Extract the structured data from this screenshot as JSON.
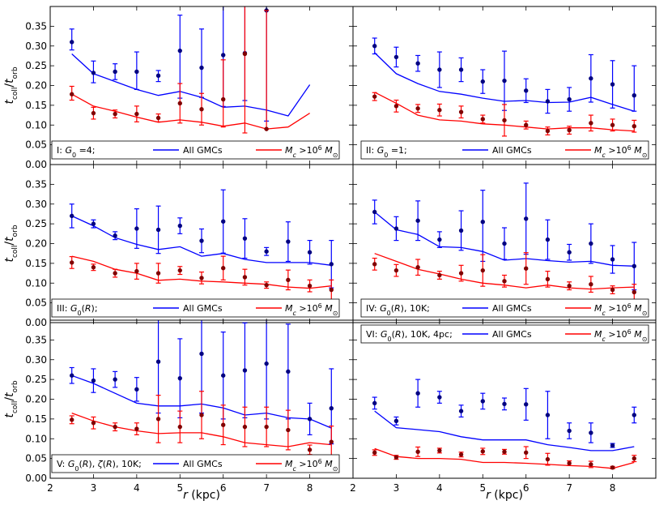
{
  "chart_data": {
    "type": "line",
    "xlabel": "r (kpc)",
    "ylabel": "t_coll/t_orb",
    "xlim": [
      2,
      9
    ],
    "ylim": [
      0,
      0.4
    ],
    "x_ticks": [
      "2",
      "3",
      "4",
      "5",
      "6",
      "7",
      "8"
    ],
    "y_ticks": [
      "0.00",
      "0.05",
      "0.10",
      "0.15",
      "0.20",
      "0.25",
      "0.30",
      "0.35"
    ],
    "series_names": [
      "All GMCs",
      "M_c > 10^6 M_⊙"
    ],
    "series_colors": [
      "#0000ff",
      "#ff0000"
    ],
    "marker_colors": [
      "#000080",
      "#800000"
    ],
    "panels": [
      {
        "label": "I: G_0 =4;",
        "all_line": {
          "x": [
            2.5,
            3,
            3.5,
            4,
            4.5,
            5,
            5.5,
            6,
            6.5,
            7,
            7.5,
            8
          ],
          "y": [
            0.28,
            0.23,
            0.21,
            0.19,
            0.175,
            0.185,
            0.17,
            0.145,
            0.148,
            0.138,
            0.123,
            0.202
          ]
        },
        "all_points": {
          "x": [
            2.5,
            3,
            3.5,
            4,
            4.5,
            5,
            5.5,
            6,
            6.5,
            7
          ],
          "y": [
            0.31,
            0.232,
            0.235,
            0.235,
            0.225,
            0.288,
            0.245,
            0.277,
            0.282,
            0.39
          ],
          "err_lo": [
            0.02,
            0.025,
            0.02,
            0.045,
            0.015,
            0.12,
            0.075,
            0.13,
            0.12,
            0.28
          ],
          "err_hi": [
            0.033,
            0.03,
            0.02,
            0.05,
            0.013,
            0.09,
            0.098,
            0.2,
            0.2,
            0.2
          ]
        },
        "mc_line": {
          "x": [
            2.5,
            3,
            3.5,
            4,
            4.5,
            5,
            5.5,
            6,
            6.5,
            7,
            7.5,
            8
          ],
          "y": [
            0.178,
            0.148,
            0.135,
            0.12,
            0.107,
            0.113,
            0.107,
            0.097,
            0.105,
            0.09,
            0.095,
            0.13
          ]
        },
        "mc_points": {
          "x": [
            2.5,
            3,
            3.5,
            4,
            4.5,
            5,
            5.5,
            6,
            6.5,
            7
          ],
          "y": [
            0.178,
            0.13,
            0.128,
            0.128,
            0.118,
            0.155,
            0.14,
            0.165,
            0.28,
            0.09
          ],
          "err_lo": [
            0.015,
            0.015,
            0.01,
            0.02,
            0.01,
            0.05,
            0.04,
            0.07,
            0.2,
            0.0
          ],
          "err_hi": [
            0.02,
            0.015,
            0.01,
            0.02,
            0.01,
            0.05,
            0.04,
            0.1,
            0.15,
            0.3
          ]
        }
      },
      {
        "label": "II: G_0 =1;",
        "all_line": {
          "x": [
            2.5,
            3,
            3.5,
            4,
            4.5,
            5,
            5.5,
            6,
            6.5,
            7,
            7.5,
            8,
            8.5
          ],
          "y": [
            0.283,
            0.23,
            0.205,
            0.185,
            0.178,
            0.168,
            0.16,
            0.162,
            0.157,
            0.158,
            0.17,
            0.152,
            0.135
          ]
        },
        "all_points": {
          "x": [
            2.5,
            3,
            3.5,
            4,
            4.5,
            5,
            5.5,
            6,
            6.5,
            7,
            7.5,
            8,
            8.5
          ],
          "y": [
            0.3,
            0.272,
            0.256,
            0.24,
            0.24,
            0.21,
            0.212,
            0.187,
            0.16,
            0.165,
            0.218,
            0.203,
            0.175
          ],
          "err_lo": [
            0.02,
            0.025,
            0.02,
            0.045,
            0.03,
            0.03,
            0.075,
            0.03,
            0.03,
            0.03,
            0.06,
            0.06,
            0.04
          ],
          "err_hi": [
            0.02,
            0.025,
            0.02,
            0.045,
            0.03,
            0.03,
            0.075,
            0.03,
            0.03,
            0.03,
            0.06,
            0.06,
            0.075
          ]
        },
        "mc_line": {
          "x": [
            2.5,
            3,
            3.5,
            4,
            4.5,
            5,
            5.5,
            6,
            6.5,
            7,
            7.5,
            8,
            8.5
          ],
          "y": [
            0.183,
            0.155,
            0.125,
            0.113,
            0.11,
            0.103,
            0.1,
            0.095,
            0.09,
            0.093,
            0.093,
            0.088,
            0.085
          ]
        },
        "mc_points": {
          "x": [
            2.5,
            3,
            3.5,
            4,
            4.5,
            5,
            5.5,
            6,
            6.5,
            7,
            7.5,
            8,
            8.5
          ],
          "y": [
            0.172,
            0.148,
            0.142,
            0.138,
            0.133,
            0.115,
            0.112,
            0.1,
            0.085,
            0.087,
            0.105,
            0.1,
            0.097
          ],
          "err_lo": [
            0.01,
            0.015,
            0.01,
            0.015,
            0.015,
            0.01,
            0.04,
            0.01,
            0.01,
            0.01,
            0.02,
            0.015,
            0.015
          ],
          "err_hi": [
            0.01,
            0.015,
            0.01,
            0.015,
            0.015,
            0.01,
            0.04,
            0.01,
            0.01,
            0.01,
            0.02,
            0.015,
            0.015
          ]
        }
      },
      {
        "label": "III: G_0(R);",
        "all_line": {
          "x": [
            2.5,
            3,
            3.5,
            4,
            4.5,
            5,
            5.5,
            6,
            6.5,
            7,
            7.5,
            8,
            8.5
          ],
          "y": [
            0.27,
            0.245,
            0.215,
            0.198,
            0.185,
            0.192,
            0.168,
            0.175,
            0.16,
            0.152,
            0.152,
            0.152,
            0.145
          ]
        },
        "all_points": {
          "x": [
            2.5,
            3,
            3.5,
            4,
            4.5,
            5,
            5.5,
            6,
            6.5,
            7,
            7.5,
            8,
            8.5
          ],
          "y": [
            0.27,
            0.25,
            0.22,
            0.238,
            0.235,
            0.245,
            0.207,
            0.256,
            0.213,
            0.18,
            0.205,
            0.178,
            0.148
          ],
          "err_lo": [
            0.03,
            0.01,
            0.01,
            0.05,
            0.06,
            0.02,
            0.03,
            0.08,
            0.05,
            0.01,
            0.05,
            0.03,
            0.06
          ],
          "err_hi": [
            0.03,
            0.01,
            0.01,
            0.05,
            0.06,
            0.02,
            0.03,
            0.08,
            0.05,
            0.01,
            0.05,
            0.03,
            0.06
          ]
        },
        "mc_line": {
          "x": [
            2.5,
            3,
            3.5,
            4,
            4.5,
            5,
            5.5,
            6,
            6.5,
            7,
            7.5,
            8,
            8.5
          ],
          "y": [
            0.168,
            0.155,
            0.135,
            0.125,
            0.107,
            0.11,
            0.105,
            0.103,
            0.1,
            0.097,
            0.09,
            0.087,
            0.093
          ]
        },
        "mc_points": {
          "x": [
            2.5,
            3,
            3.5,
            4,
            4.5,
            5,
            5.5,
            6,
            6.5,
            7,
            7.5,
            8,
            8.5
          ],
          "y": [
            0.152,
            0.14,
            0.125,
            0.13,
            0.125,
            0.132,
            0.113,
            0.138,
            0.115,
            0.095,
            0.108,
            0.093,
            0.083
          ],
          "err_lo": [
            0.015,
            0.008,
            0.01,
            0.02,
            0.025,
            0.01,
            0.015,
            0.03,
            0.02,
            0.008,
            0.025,
            0.015,
            0.025
          ],
          "err_hi": [
            0.015,
            0.008,
            0.01,
            0.02,
            0.025,
            0.01,
            0.015,
            0.03,
            0.02,
            0.008,
            0.025,
            0.015,
            0.025
          ]
        }
      },
      {
        "label": "IV: G_0(R), 10K;",
        "all_line": {
          "x": [
            2.5,
            3,
            3.5,
            4,
            4.5,
            5,
            5.5,
            6,
            6.5,
            7,
            7.5,
            8,
            8.5
          ],
          "y": [
            0.28,
            0.235,
            0.223,
            0.192,
            0.19,
            0.18,
            0.158,
            0.162,
            0.157,
            0.153,
            0.155,
            0.145,
            0.143
          ]
        },
        "all_points": {
          "x": [
            2.5,
            3,
            3.5,
            4,
            4.5,
            5,
            5.5,
            6,
            6.5,
            7,
            7.5,
            8,
            8.5
          ],
          "y": [
            0.28,
            0.238,
            0.258,
            0.21,
            0.233,
            0.255,
            0.2,
            0.263,
            0.21,
            0.178,
            0.2,
            0.16,
            0.143
          ],
          "err_lo": [
            0.03,
            0.03,
            0.05,
            0.02,
            0.05,
            0.1,
            0.04,
            0.09,
            0.05,
            0.02,
            0.05,
            0.035,
            0.06
          ],
          "err_hi": [
            0.03,
            0.03,
            0.05,
            0.02,
            0.05,
            0.08,
            0.04,
            0.09,
            0.05,
            0.02,
            0.05,
            0.035,
            0.06
          ]
        },
        "mc_line": {
          "x": [
            2.5,
            3,
            3.5,
            4,
            4.5,
            5,
            5.5,
            6,
            6.5,
            7,
            7.5,
            8,
            8.5
          ],
          "y": [
            0.175,
            0.155,
            0.135,
            0.123,
            0.11,
            0.1,
            0.095,
            0.088,
            0.095,
            0.088,
            0.085,
            0.088,
            0.09
          ]
        },
        "mc_points": {
          "x": [
            2.5,
            3,
            3.5,
            4,
            4.5,
            5,
            5.5,
            6,
            6.5,
            7,
            7.5,
            8,
            8.5
          ],
          "y": [
            0.148,
            0.132,
            0.14,
            0.12,
            0.125,
            0.132,
            0.105,
            0.137,
            0.11,
            0.093,
            0.097,
            0.083,
            0.077
          ],
          "err_lo": [
            0.015,
            0.015,
            0.02,
            0.01,
            0.02,
            0.04,
            0.015,
            0.04,
            0.02,
            0.01,
            0.02,
            0.01,
            0.02
          ],
          "err_hi": [
            0.015,
            0.015,
            0.02,
            0.01,
            0.02,
            0.04,
            0.015,
            0.04,
            0.02,
            0.01,
            0.02,
            0.01,
            0.02
          ]
        }
      },
      {
        "label": "V: G_0(R), ζ(R), 10K;",
        "all_line": {
          "x": [
            2.5,
            3,
            3.5,
            4,
            4.5,
            5,
            5.5,
            6,
            6.5,
            7,
            7.5,
            8,
            8.5
          ],
          "y": [
            0.26,
            0.24,
            0.215,
            0.19,
            0.183,
            0.183,
            0.188,
            0.178,
            0.16,
            0.165,
            0.153,
            0.15,
            0.127
          ]
        },
        "all_points": {
          "x": [
            2.5,
            3,
            3.5,
            4,
            4.5,
            5,
            5.5,
            6,
            6.5,
            7,
            7.5,
            8,
            8.5
          ],
          "y": [
            0.26,
            0.247,
            0.25,
            0.225,
            0.295,
            0.253,
            0.315,
            0.26,
            0.273,
            0.29,
            0.27,
            0.15,
            0.177
          ],
          "err_lo": [
            0.02,
            0.03,
            0.02,
            0.03,
            0.13,
            0.1,
            0.15,
            0.11,
            0.12,
            0.14,
            0.12,
            0.04,
            0.09
          ],
          "err_hi": [
            0.02,
            0.03,
            0.02,
            0.03,
            0.13,
            0.1,
            0.15,
            0.11,
            0.12,
            0.14,
            0.12,
            0.04,
            0.1
          ]
        },
        "mc_line": {
          "x": [
            2.5,
            3,
            3.5,
            4,
            4.5,
            5,
            5.5,
            6,
            6.5,
            7,
            7.5,
            8,
            8.5
          ],
          "y": [
            0.165,
            0.145,
            0.13,
            0.12,
            0.113,
            0.115,
            0.115,
            0.105,
            0.09,
            0.085,
            0.08,
            0.09,
            0.085
          ]
        },
        "mc_points": {
          "x": [
            2.5,
            3,
            3.5,
            4,
            4.5,
            5,
            5.5,
            6,
            6.5,
            7,
            7.5,
            8,
            8.5
          ],
          "y": [
            0.148,
            0.14,
            0.13,
            0.125,
            0.15,
            0.13,
            0.16,
            0.135,
            0.13,
            0.13,
            0.122,
            0.072,
            0.092
          ],
          "err_lo": [
            0.01,
            0.015,
            0.01,
            0.015,
            0.06,
            0.04,
            0.06,
            0.05,
            0.05,
            0.05,
            0.05,
            0.012,
            0.04
          ],
          "err_hi": [
            0.01,
            0.015,
            0.01,
            0.015,
            0.06,
            0.04,
            0.06,
            0.05,
            0.05,
            0.05,
            0.05,
            0.012,
            0.04
          ]
        }
      },
      {
        "label": "VI: G_0(R), 10K, 4pc;",
        "all_line": {
          "x": [
            2.5,
            3,
            3.5,
            4,
            4.5,
            5,
            5.5,
            6,
            6.5,
            7,
            7.5,
            8,
            8.5
          ],
          "y": [
            0.17,
            0.128,
            0.123,
            0.118,
            0.105,
            0.097,
            0.097,
            0.097,
            0.085,
            0.078,
            0.07,
            0.07,
            0.08
          ]
        },
        "all_points": {
          "x": [
            2.5,
            3,
            3.5,
            4,
            4.5,
            5,
            5.5,
            6,
            6.5,
            7,
            7.5,
            8,
            8.5
          ],
          "y": [
            0.19,
            0.145,
            0.215,
            0.205,
            0.17,
            0.195,
            0.188,
            0.187,
            0.16,
            0.12,
            0.115,
            0.083,
            0.16
          ],
          "err_lo": [
            0.015,
            0.01,
            0.035,
            0.015,
            0.015,
            0.02,
            0.015,
            0.04,
            0.06,
            0.02,
            0.025,
            0.005,
            0.02
          ],
          "err_hi": [
            0.015,
            0.01,
            0.035,
            0.015,
            0.015,
            0.02,
            0.015,
            0.04,
            0.06,
            0.02,
            0.025,
            0.005,
            0.02
          ]
        },
        "mc_line": {
          "x": [
            2.5,
            3,
            3.5,
            4,
            4.5,
            5,
            5.5,
            6,
            6.5,
            7,
            7.5,
            8,
            8.5
          ],
          "y": [
            0.075,
            0.055,
            0.05,
            0.05,
            0.048,
            0.04,
            0.04,
            0.038,
            0.035,
            0.032,
            0.03,
            0.025,
            0.04
          ]
        },
        "mc_points": {
          "x": [
            2.5,
            3,
            3.5,
            4,
            4.5,
            5,
            5.5,
            6,
            6.5,
            7,
            7.5,
            8,
            8.5
          ],
          "y": [
            0.065,
            0.053,
            0.067,
            0.07,
            0.06,
            0.068,
            0.067,
            0.065,
            0.048,
            0.038,
            0.035,
            0.027,
            0.05
          ],
          "err_lo": [
            0.007,
            0.005,
            0.012,
            0.006,
            0.006,
            0.008,
            0.006,
            0.015,
            0.015,
            0.006,
            0.008,
            0.003,
            0.008
          ],
          "err_hi": [
            0.007,
            0.005,
            0.012,
            0.006,
            0.006,
            0.008,
            0.006,
            0.015,
            0.015,
            0.006,
            0.008,
            0.003,
            0.008
          ]
        }
      }
    ]
  }
}
